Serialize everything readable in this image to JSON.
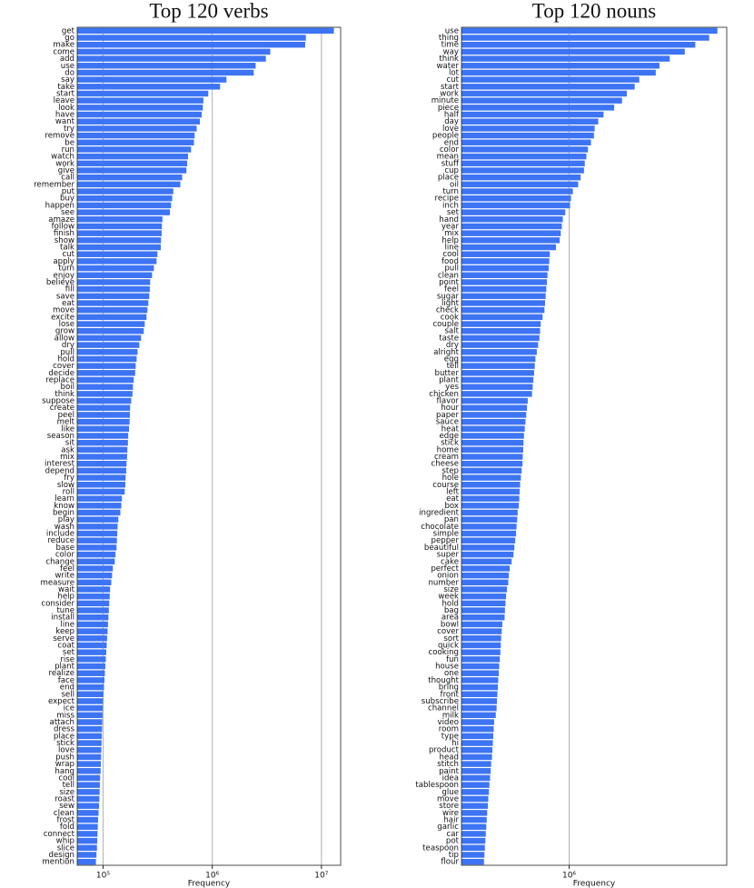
{
  "chart_data": [
    {
      "type": "bar",
      "orientation": "horizontal",
      "title": "Top 120 verbs",
      "xlabel": "Frequency",
      "xscale": "log",
      "grid": true,
      "color": "#3d74f4",
      "categories": [
        "get",
        "go",
        "make",
        "come",
        "add",
        "use",
        "do",
        "say",
        "take",
        "start",
        "leave",
        "look",
        "have",
        "want",
        "try",
        "remove",
        "be",
        "run",
        "watch",
        "work",
        "give",
        "call",
        "remember",
        "put",
        "buy",
        "happen",
        "see",
        "amaze",
        "follow",
        "finish",
        "show",
        "talk",
        "cut",
        "apply",
        "turn",
        "enjoy",
        "believe",
        "fill",
        "save",
        "eat",
        "move",
        "excite",
        "lose",
        "grow",
        "allow",
        "dry",
        "pull",
        "hold",
        "cover",
        "decide",
        "replace",
        "boil",
        "think",
        "suppose",
        "create",
        "peel",
        "melt",
        "like",
        "season",
        "sit",
        "ask",
        "mix",
        "interest",
        "depend",
        "fry",
        "slow",
        "roll",
        "learn",
        "know",
        "begin",
        "play",
        "wash",
        "include",
        "reduce",
        "base",
        "color",
        "change",
        "feel",
        "write",
        "measure",
        "wait",
        "help",
        "consider",
        "tune",
        "install",
        "line",
        "keep",
        "serve",
        "coat",
        "set",
        "rise",
        "plant",
        "realize",
        "face",
        "end",
        "sell",
        "expect",
        "ice",
        "miss",
        "attach",
        "dress",
        "place",
        "stick",
        "love",
        "push",
        "wrap",
        "hang",
        "cool",
        "tell",
        "size",
        "roast",
        "sew",
        "clean",
        "frost",
        "fold",
        "connect",
        "whip",
        "slice",
        "design",
        "mention"
      ],
      "values": [
        13000000,
        7200000,
        7100000,
        3400000,
        3100000,
        2500000,
        2400000,
        1350000,
        1180000,
        920000,
        830000,
        820000,
        800000,
        770000,
        720000,
        690000,
        680000,
        640000,
        600000,
        590000,
        580000,
        530000,
        510000,
        440000,
        430000,
        420000,
        410000,
        350000,
        346000,
        344000,
        340000,
        338000,
        315000,
        309000,
        292000,
        281000,
        270000,
        268000,
        265000,
        260000,
        255000,
        250000,
        241000,
        236000,
        223000,
        215000,
        207000,
        203000,
        199000,
        197000,
        191000,
        188000,
        186000,
        181000,
        177000,
        176000,
        175000,
        173000,
        170000,
        169000,
        167000,
        166000,
        164000,
        163000,
        161000,
        160000,
        158000,
        149000,
        147000,
        144000,
        138000,
        136000,
        135000,
        134000,
        133000,
        130000,
        128000,
        123000,
        121000,
        119000,
        116000,
        115000,
        114000,
        113000,
        112000,
        111000,
        110000,
        109000,
        108000,
        107000,
        106000,
        105000,
        104000,
        103000,
        102000,
        101000,
        100000,
        99500,
        99000,
        98500,
        98000,
        97500,
        97000,
        96500,
        96000,
        95500,
        95000,
        94000,
        93500,
        93000,
        92500,
        92000,
        91000,
        90000,
        89500,
        89000,
        88500,
        88000,
        87000,
        86000
      ],
      "xlim": [
        58000,
        15000000
      ],
      "xticks": [
        {
          "value": 100000,
          "label": "10⁵"
        },
        {
          "value": 1000000,
          "label": "10⁶"
        },
        {
          "value": 10000000,
          "label": "10⁷"
        }
      ]
    },
    {
      "type": "bar",
      "orientation": "horizontal",
      "title": "Top 120 nouns",
      "xlabel": "Frequency",
      "xscale": "log",
      "grid": true,
      "color": "#3d74f4",
      "categories": [
        "use",
        "thing",
        "time",
        "way",
        "think",
        "water",
        "lot",
        "cut",
        "start",
        "work",
        "minute",
        "piece",
        "half",
        "day",
        "love",
        "people",
        "end",
        "color",
        "mean",
        "stuff",
        "cup",
        "place",
        "oil",
        "turn",
        "recipe",
        "inch",
        "set",
        "hand",
        "year",
        "mix",
        "help",
        "line",
        "cool",
        "food",
        "pull",
        "clean",
        "point",
        "feel",
        "sugar",
        "light",
        "check",
        "cook",
        "couple",
        "salt",
        "taste",
        "dry",
        "alright",
        "egg",
        "tell",
        "butter",
        "plant",
        "yes",
        "chicken",
        "flavor",
        "hour",
        "paper",
        "sauce",
        "heat",
        "edge",
        "stick",
        "home",
        "cream",
        "cheese",
        "step",
        "hole",
        "course",
        "left",
        "eat",
        "box",
        "ingredient",
        "pan",
        "chocolate",
        "simple",
        "pepper",
        "beautiful",
        "super",
        "cake",
        "perfect",
        "onion",
        "number",
        "size",
        "week",
        "hold",
        "bag",
        "area",
        "bowl",
        "cover",
        "sort",
        "quick",
        "cooking",
        "fun",
        "house",
        "one",
        "thought",
        "bring",
        "front",
        "subscribe",
        "channel",
        "milk",
        "video",
        "room",
        "type",
        "hi",
        "product",
        "head",
        "stitch",
        "paint",
        "idea",
        "tablespoon",
        "glue",
        "move",
        "store",
        "wire",
        "hair",
        "garlic",
        "car",
        "pot",
        "teaspoon",
        "tip",
        "flour"
      ],
      "values": [
        4800000,
        4400000,
        3800000,
        3400000,
        2900000,
        2600000,
        2500000,
        2100000,
        2000000,
        1840000,
        1750000,
        1610000,
        1440000,
        1360000,
        1310000,
        1300000,
        1260000,
        1220000,
        1200000,
        1180000,
        1170000,
        1130000,
        1100000,
        1040000,
        1020000,
        1010000,
        960000,
        935000,
        925000,
        915000,
        905000,
        870000,
        815000,
        810000,
        805000,
        795000,
        790000,
        785000,
        780000,
        775000,
        770000,
        755000,
        740000,
        735000,
        730000,
        720000,
        710000,
        700000,
        695000,
        690000,
        685000,
        680000,
        675000,
        645000,
        640000,
        635000,
        630000,
        625000,
        620000,
        617000,
        615000,
        612000,
        610000,
        605000,
        600000,
        595000,
        592000,
        590000,
        587000,
        580000,
        577000,
        573000,
        570000,
        565000,
        560000,
        555000,
        544000,
        533000,
        528000,
        525000,
        518000,
        513000,
        510000,
        507000,
        505000,
        493000,
        490000,
        487000,
        485000,
        483000,
        480000,
        477000,
        475000,
        472000,
        470000,
        468000,
        466000,
        464000,
        460000,
        452000,
        450000,
        448000,
        446000,
        444000,
        442000,
        438000,
        436000,
        433000,
        430000,
        428000,
        425000,
        423000,
        420000,
        418000,
        416000,
        414000,
        412000,
        410000,
        408000,
        406000
      ],
      "xlim": [
        320000,
        5300000
      ],
      "xticks": [
        {
          "value": 1000000,
          "label": "10⁶"
        }
      ]
    }
  ]
}
